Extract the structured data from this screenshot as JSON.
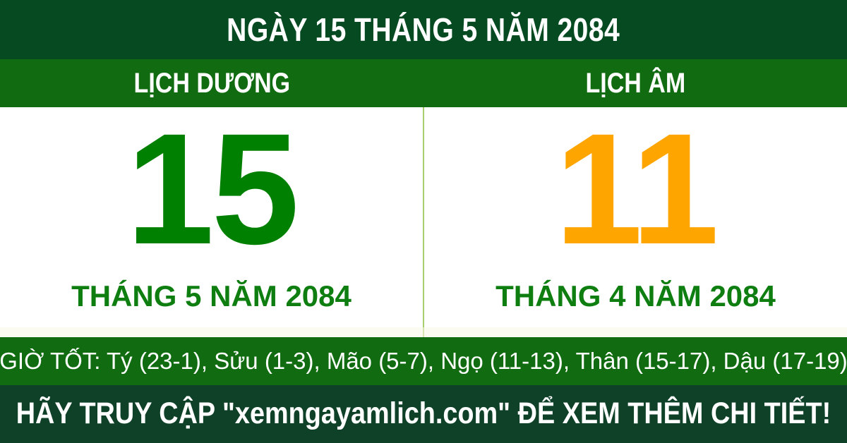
{
  "colors": {
    "top_bar_bg": "#064a21",
    "green_bar_bg": "#116c11",
    "bottom_bar_bg": "#0f4128",
    "solar_accent": "#008000",
    "lunar_accent": "#ffa500",
    "month_label_color": "#0e7e10",
    "divider": "#a8d06e",
    "text_on_dark": "#ffffff",
    "panel_bg": "#ffffff"
  },
  "header": {
    "title": "NGÀY 15 THÁNG 5 NĂM 2084"
  },
  "calendar": {
    "solar": {
      "label": "LỊCH DƯƠNG",
      "day": "15",
      "month_year": "THÁNG 5 NĂM 2084"
    },
    "lunar": {
      "label": "LỊCH ÂM",
      "day": "11",
      "month_year": "THÁNG 4 NĂM 2084"
    }
  },
  "good_hours": {
    "text": "GIỜ TỐT: Tý (23-1), Sửu (1-3), Mão (5-7), Ngọ (11-13), Thân (15-17), Dậu (17-19)",
    "label": "GIỜ TỐT",
    "hours": [
      {
        "name": "Tý",
        "range": "23-1"
      },
      {
        "name": "Sửu",
        "range": "1-3"
      },
      {
        "name": "Mão",
        "range": "5-7"
      },
      {
        "name": "Ngọ",
        "range": "11-13"
      },
      {
        "name": "Thân",
        "range": "15-17"
      },
      {
        "name": "Dậu",
        "range": "17-19"
      }
    ]
  },
  "footer": {
    "cta": "HÃY TRUY CẬP \"xemngayamlich.com\" ĐỂ XEM THÊM CHI TIẾT!"
  }
}
